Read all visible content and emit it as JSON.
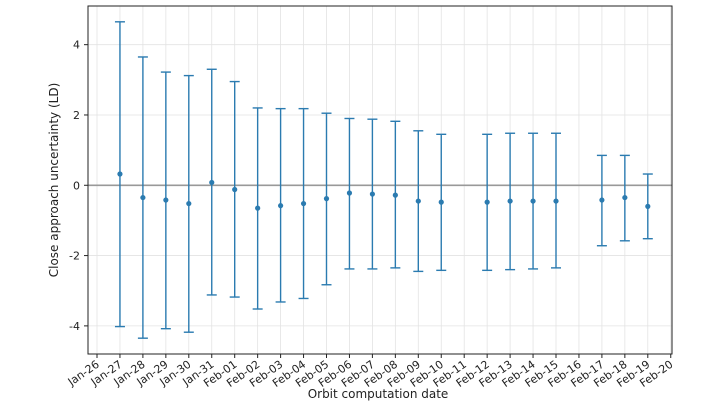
{
  "chart_data": {
    "type": "scatter",
    "xlabel": "Orbit computation date",
    "ylabel": "Close approach uncertainty (LD)",
    "x_ticks": [
      "Jan-26",
      "Jan-27",
      "Jan-28",
      "Jan-29",
      "Jan-30",
      "Jan-31",
      "Feb-01",
      "Feb-02",
      "Feb-03",
      "Feb-04",
      "Feb-05",
      "Feb-06",
      "Feb-07",
      "Feb-08",
      "Feb-09",
      "Feb-10",
      "Feb-11",
      "Feb-12",
      "Feb-13",
      "Feb-14",
      "Feb-15",
      "Feb-16",
      "Feb-17",
      "Feb-18",
      "Feb-19",
      "Feb-20"
    ],
    "y_ticks": [
      -4,
      -2,
      0,
      2,
      4
    ],
    "ylim": [
      -4.8,
      5.1
    ],
    "grid": true,
    "reference_line": 0,
    "series": [
      {
        "color": "#2b7bb0",
        "points": [
          {
            "date": "Jan-27",
            "y": 0.32,
            "low": -4.02,
            "high": 4.65
          },
          {
            "date": "Jan-28",
            "y": -0.35,
            "low": -4.35,
            "high": 3.65
          },
          {
            "date": "Jan-29",
            "y": -0.42,
            "low": -4.08,
            "high": 3.22
          },
          {
            "date": "Jan-30",
            "y": -0.52,
            "low": -4.18,
            "high": 3.12
          },
          {
            "date": "Jan-31",
            "y": 0.08,
            "low": -3.12,
            "high": 3.3
          },
          {
            "date": "Feb-01",
            "y": -0.12,
            "low": -3.18,
            "high": 2.95
          },
          {
            "date": "Feb-02",
            "y": -0.65,
            "low": -3.52,
            "high": 2.2
          },
          {
            "date": "Feb-03",
            "y": -0.58,
            "low": -3.32,
            "high": 2.18
          },
          {
            "date": "Feb-04",
            "y": -0.52,
            "low": -3.22,
            "high": 2.18
          },
          {
            "date": "Feb-05",
            "y": -0.38,
            "low": -2.83,
            "high": 2.05
          },
          {
            "date": "Feb-06",
            "y": -0.22,
            "low": -2.38,
            "high": 1.9
          },
          {
            "date": "Feb-07",
            "y": -0.25,
            "low": -2.38,
            "high": 1.88
          },
          {
            "date": "Feb-08",
            "y": -0.28,
            "low": -2.35,
            "high": 1.82
          },
          {
            "date": "Feb-09",
            "y": -0.45,
            "low": -2.45,
            "high": 1.55
          },
          {
            "date": "Feb-10",
            "y": -0.48,
            "low": -2.42,
            "high": 1.45
          },
          {
            "date": "Feb-12",
            "y": -0.48,
            "low": -2.42,
            "high": 1.45
          },
          {
            "date": "Feb-13",
            "y": -0.45,
            "low": -2.4,
            "high": 1.48
          },
          {
            "date": "Feb-14",
            "y": -0.45,
            "low": -2.38,
            "high": 1.48
          },
          {
            "date": "Feb-15",
            "y": -0.45,
            "low": -2.35,
            "high": 1.48
          },
          {
            "date": "Feb-17",
            "y": -0.42,
            "low": -1.72,
            "high": 0.85
          },
          {
            "date": "Feb-18",
            "y": -0.35,
            "low": -1.58,
            "high": 0.85
          },
          {
            "date": "Feb-19",
            "y": -0.6,
            "low": -1.52,
            "high": 0.32
          }
        ]
      }
    ]
  }
}
